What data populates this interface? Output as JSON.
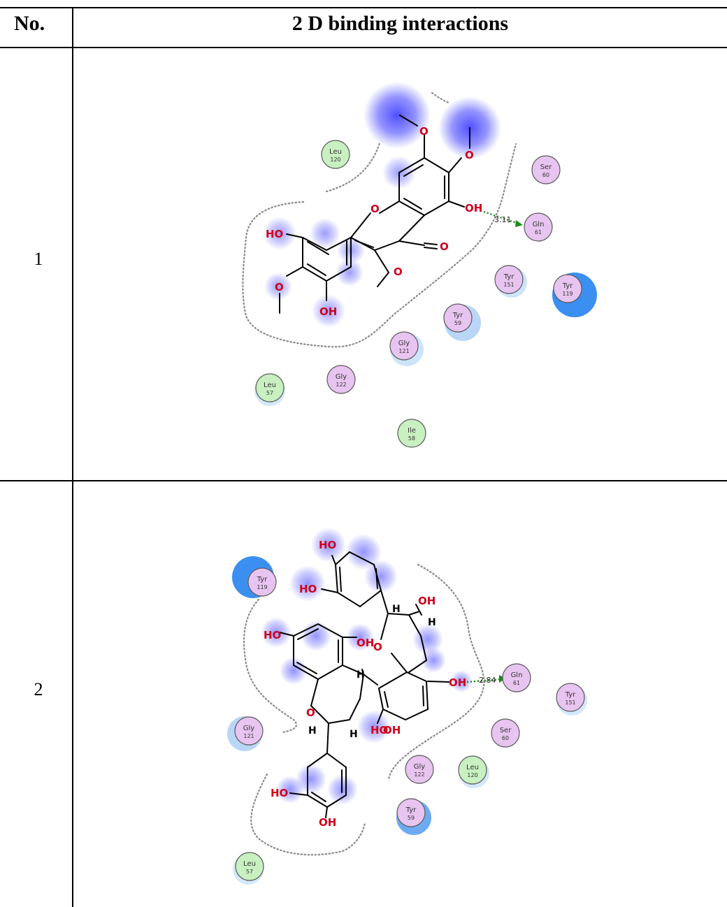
{
  "table": {
    "header_no": "No.",
    "header_title": "2 D binding interactions"
  },
  "rows": [
    {
      "number": "1",
      "hbond_distance": "3.11",
      "atom_labels": [
        "O",
        "O",
        "O",
        "O",
        "O",
        "OH",
        "HO",
        "OH"
      ],
      "residues": [
        {
          "name": "Leu",
          "num": "120",
          "type": "hydrophobic"
        },
        {
          "name": "Ser",
          "num": "60",
          "type": "polar"
        },
        {
          "name": "Gln",
          "num": "61",
          "type": "polar"
        },
        {
          "name": "Tyr",
          "num": "151",
          "type": "polar"
        },
        {
          "name": "Tyr",
          "num": "119",
          "type": "polar"
        },
        {
          "name": "Tyr",
          "num": "59",
          "type": "polar"
        },
        {
          "name": "Gly",
          "num": "121",
          "type": "polar"
        },
        {
          "name": "Gly",
          "num": "122",
          "type": "polar"
        },
        {
          "name": "Leu",
          "num": "57",
          "type": "hydrophobic"
        },
        {
          "name": "Ile",
          "num": "58",
          "type": "hydrophobic"
        }
      ]
    },
    {
      "number": "2",
      "hbond_distance": "2.84",
      "atom_labels": [
        "HO",
        "HO",
        "OH",
        "H",
        "H",
        "HO",
        "OH",
        "O",
        "OH",
        "H",
        "O",
        "H",
        "H",
        "HO",
        "OH",
        "HO",
        "OH"
      ],
      "residues": [
        {
          "name": "Tyr",
          "num": "119",
          "type": "polar"
        },
        {
          "name": "Gln",
          "num": "61",
          "type": "polar"
        },
        {
          "name": "Tyr",
          "num": "151",
          "type": "polar"
        },
        {
          "name": "Ser",
          "num": "60",
          "type": "polar"
        },
        {
          "name": "Gly",
          "num": "121",
          "type": "polar"
        },
        {
          "name": "Gly",
          "num": "122",
          "type": "polar"
        },
        {
          "name": "Leu",
          "num": "120",
          "type": "hydrophobic"
        },
        {
          "name": "Tyr",
          "num": "59",
          "type": "polar"
        },
        {
          "name": "Leu",
          "num": "57",
          "type": "hydrophobic"
        }
      ]
    }
  ],
  "colors": {
    "polar_fill": "#e8c4f0",
    "hydrophobic_fill": "#c8f0c0",
    "exposure_blue": "#3b8ff0",
    "ligand_glow": "#4b4bff",
    "oxygen": "#d0021b",
    "hbond": "#1a8a1a"
  }
}
